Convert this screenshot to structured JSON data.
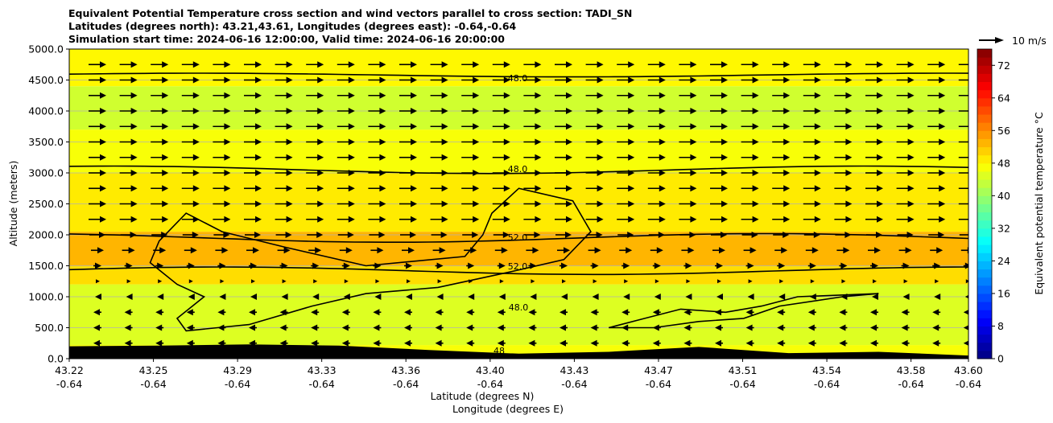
{
  "chart_data": {
    "type": "contourf",
    "title_lines": [
      "Equivalent Potential Temperature cross section and wind vectors parallel to cross section: TADI_SN",
      "Latitudes (degrees north): 43.21,43.61, Longitudes (degrees east): -0.64,-0.64",
      "Simulation start time: 2024-06-16 12:00:00, Valid time: 2024-06-16 20:00:00"
    ],
    "xlabel_lines": [
      "Latitude (degrees N)",
      "Longitude (degrees E)"
    ],
    "ylabel": "Altitude (meters)",
    "ylim": [
      0,
      5000
    ],
    "y_ticks": [
      "0.0",
      "500.0",
      "1000.0",
      "1500.0",
      "2000.0",
      "2500.0",
      "3000.0",
      "3500.0",
      "4000.0",
      "4500.0",
      "5000.0"
    ],
    "x_ticks": [
      {
        "lat": "43.22",
        "lon": "-0.64"
      },
      {
        "lat": "43.25",
        "lon": "-0.64"
      },
      {
        "lat": "43.29",
        "lon": "-0.64"
      },
      {
        "lat": "43.33",
        "lon": "-0.64"
      },
      {
        "lat": "43.36",
        "lon": "-0.64"
      },
      {
        "lat": "43.40",
        "lon": "-0.64"
      },
      {
        "lat": "43.43",
        "lon": "-0.64"
      },
      {
        "lat": "43.47",
        "lon": "-0.64"
      },
      {
        "lat": "43.51",
        "lon": "-0.64"
      },
      {
        "lat": "43.54",
        "lon": "-0.64"
      },
      {
        "lat": "43.58",
        "lon": "-0.64"
      },
      {
        "lat": "43.60",
        "lon": "-0.64"
      }
    ],
    "grid": true,
    "colorbar": {
      "label": "Equivalent potential temperature $^\\circ$C",
      "min": 0,
      "max": 76,
      "step": 2,
      "ticks": [
        "0",
        "8",
        "16",
        "24",
        "32",
        "40",
        "48",
        "56",
        "64",
        "72"
      ],
      "colormap": "jet"
    },
    "quiver_key": "10 m/s",
    "contour_labels": [
      "48.0",
      "48.0",
      "52.0",
      "52.0",
      "48.0",
      "48"
    ],
    "bands": [
      {
        "from": 0,
        "to": 220,
        "value": 47
      },
      {
        "from": 220,
        "to": 1200,
        "value": 45
      },
      {
        "from": 1200,
        "to": 1500,
        "value": 50
      },
      {
        "from": 1500,
        "to": 2050,
        "value": 53
      },
      {
        "from": 2050,
        "to": 3000,
        "value": 49
      },
      {
        "from": 3000,
        "to": 3700,
        "value": 47
      },
      {
        "from": 3700,
        "to": 4400,
        "value": 44
      },
      {
        "from": 4400,
        "to": 5000,
        "value": 48
      }
    ],
    "terrain": [
      [
        0,
        200
      ],
      [
        0.1,
        210
      ],
      [
        0.2,
        230
      ],
      [
        0.3,
        210
      ],
      [
        0.4,
        140
      ],
      [
        0.5,
        80
      ],
      [
        0.6,
        110
      ],
      [
        0.7,
        190
      ],
      [
        0.8,
        90
      ],
      [
        0.9,
        110
      ],
      [
        1,
        50
      ]
    ],
    "wind_rows": [
      {
        "alt": 250,
        "u": -5
      },
      {
        "alt": 500,
        "u": -5
      },
      {
        "alt": 750,
        "u": -5
      },
      {
        "alt": 1000,
        "u": -3
      },
      {
        "alt": 1250,
        "u": 2
      },
      {
        "alt": 1500,
        "u": 5
      },
      {
        "alt": 1750,
        "u": 8
      },
      {
        "alt": 2000,
        "u": 10
      },
      {
        "alt": 2250,
        "u": 11
      },
      {
        "alt": 2500,
        "u": 11
      },
      {
        "alt": 2750,
        "u": 11
      },
      {
        "alt": 3000,
        "u": 11
      },
      {
        "alt": 3250,
        "u": 11
      },
      {
        "alt": 3500,
        "u": 11
      },
      {
        "alt": 3750,
        "u": 11
      },
      {
        "alt": 4000,
        "u": 11
      },
      {
        "alt": 4250,
        "u": 11
      },
      {
        "alt": 4500,
        "u": 11
      },
      {
        "alt": 4750,
        "u": 11
      }
    ]
  }
}
